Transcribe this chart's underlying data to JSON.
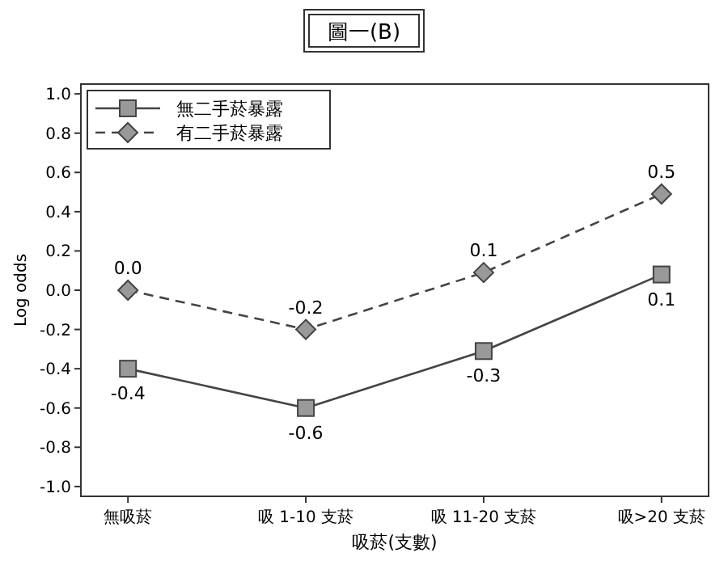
{
  "chart_data": {
    "type": "line",
    "title": "圖一(B)",
    "xlabel": "吸菸(支數)",
    "ylabel": "Log odds",
    "categories": [
      "無吸菸",
      "吸 1-10 支菸",
      "吸 11-20 支菸",
      "吸>20 支菸"
    ],
    "series": [
      {
        "name": "無二手菸暴露",
        "color": "#444444",
        "values": [
          -0.4,
          -0.6,
          -0.31,
          0.08
        ],
        "value_labels": [
          "-0.4",
          "-0.6",
          "-0.3",
          "0.1"
        ],
        "marker": "square",
        "line_style": "solid"
      },
      {
        "name": "有二手菸暴露",
        "color": "#444444",
        "values": [
          0.0,
          -0.2,
          0.09,
          0.49
        ],
        "value_labels": [
          "0.0",
          "-0.2",
          "0.1",
          "0.5"
        ],
        "marker": "diamond",
        "line_style": "dashed"
      }
    ],
    "ylim": [
      -1.05,
      1.05
    ],
    "yticks": [
      {
        "value": -1.0,
        "label": "-1.0"
      },
      {
        "value": -0.8,
        "label": "-0.8"
      },
      {
        "value": -0.6,
        "label": "-0.6"
      },
      {
        "value": -0.4,
        "label": "-0.4"
      },
      {
        "value": -0.2,
        "label": "-0.2"
      },
      {
        "value": 0.0,
        "label": "0.0"
      },
      {
        "value": 0.2,
        "label": "0.2"
      },
      {
        "value": 0.4,
        "label": "0.4"
      },
      {
        "value": 0.6,
        "label": "0.6"
      },
      {
        "value": 0.8,
        "label": "0.8"
      },
      {
        "value": 1.0,
        "label": "1.0"
      }
    ],
    "legend": "top left",
    "grid": false
  }
}
